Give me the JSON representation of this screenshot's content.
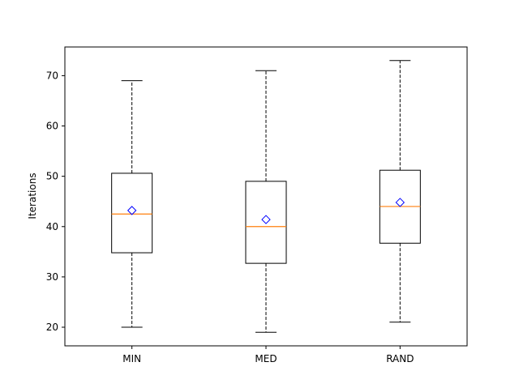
{
  "chart_data": {
    "type": "box",
    "title": "",
    "xlabel": "",
    "ylabel": "Iterations",
    "ylim": [
      16.3,
      75.7
    ],
    "yticks": [
      20,
      30,
      40,
      50,
      60,
      70
    ],
    "categories": [
      "MIN",
      "MED",
      "RAND"
    ],
    "boxes": [
      {
        "whisker_low": 20,
        "q1": 34.8,
        "median": 42.5,
        "q3": 50.6,
        "whisker_high": 69,
        "mean": 43.2
      },
      {
        "whisker_low": 19,
        "q1": 32.7,
        "median": 40.0,
        "q3": 49.0,
        "whisker_high": 71,
        "mean": 41.4
      },
      {
        "whisker_low": 21,
        "q1": 36.7,
        "median": 44.0,
        "q3": 51.2,
        "whisker_high": 73,
        "mean": 44.8
      }
    ],
    "colors": {
      "box": "#000000",
      "median": "#ff7f0e",
      "mean_marker": "#0000ff",
      "whisker": "#000000"
    },
    "grid": false,
    "legend": "none"
  }
}
